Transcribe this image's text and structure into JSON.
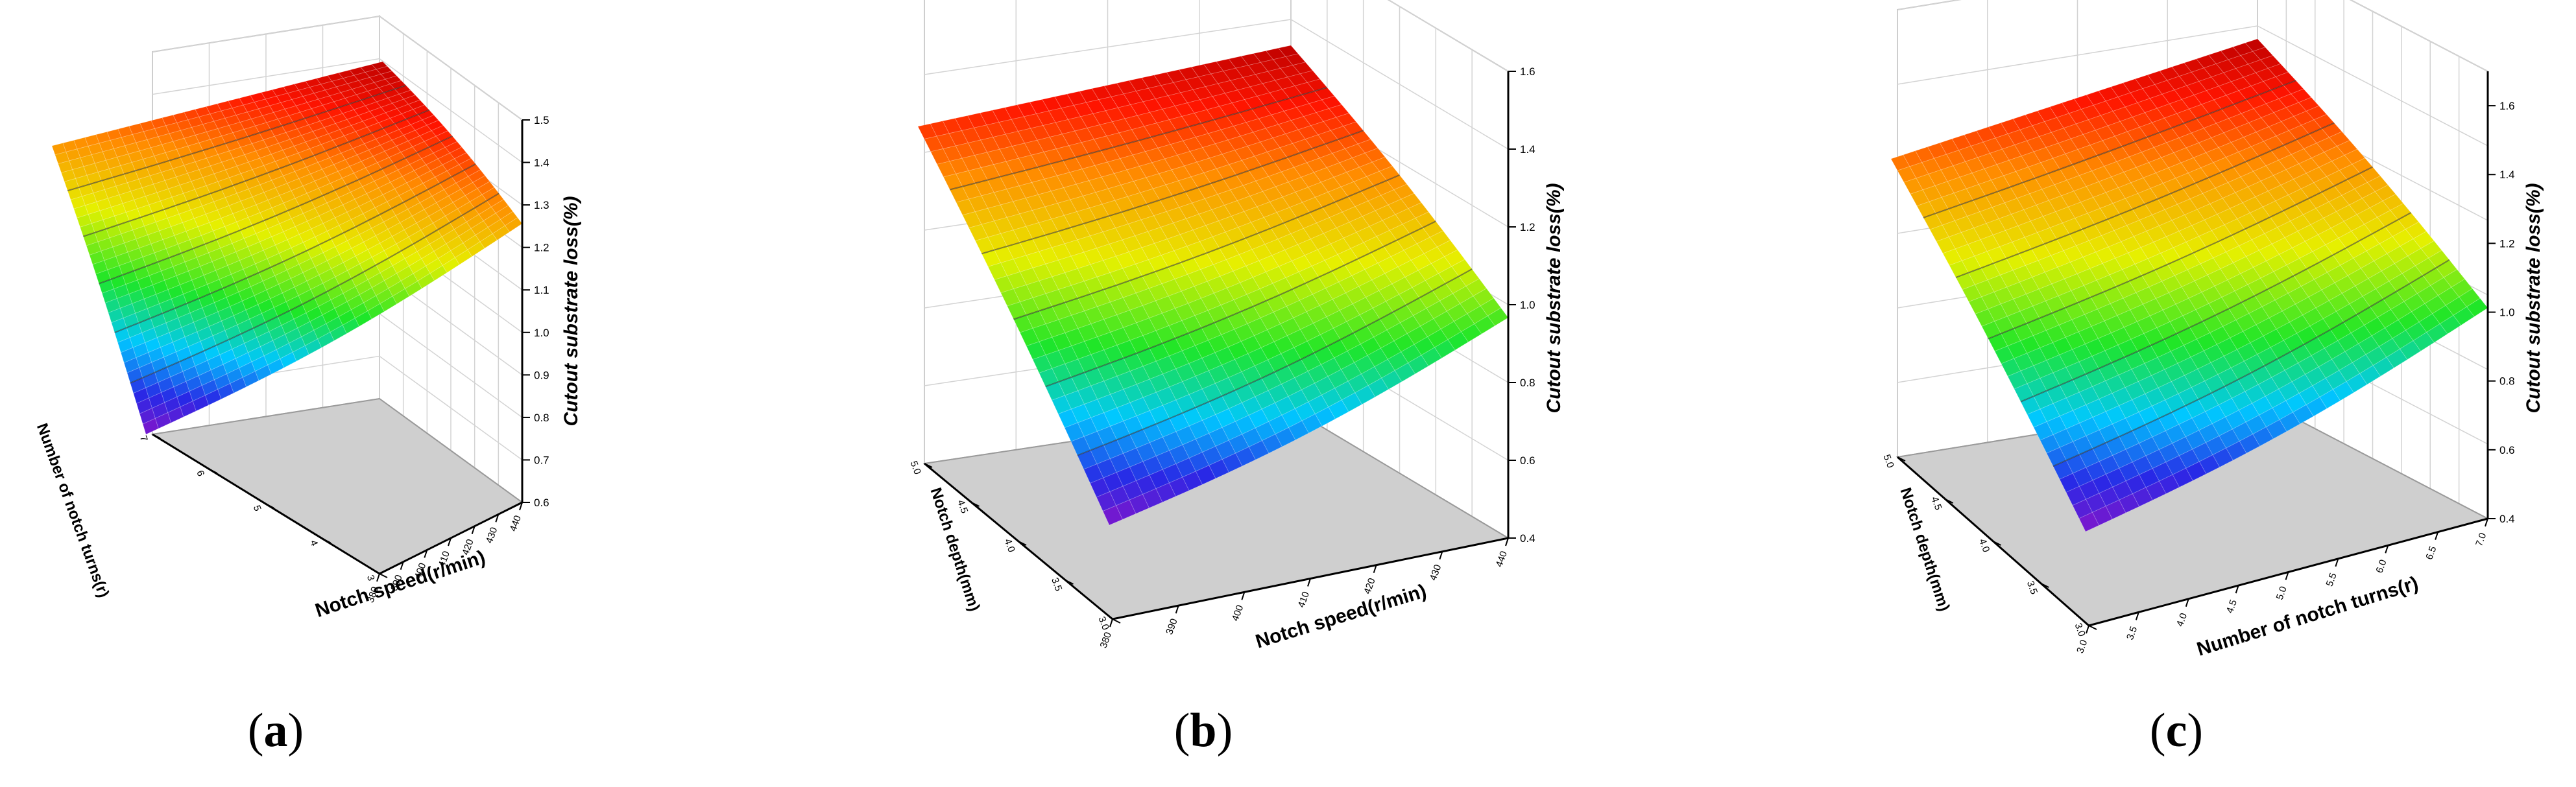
{
  "chart_data": [
    {
      "type": "surface3d",
      "panel_label": "a",
      "x_axis": {
        "label": "Notch speed(r/min)",
        "ticks": [
          "380",
          "390",
          "400",
          "410",
          "420",
          "430",
          "440"
        ],
        "range": [
          380,
          440
        ]
      },
      "y_axis": {
        "label": "Number of notch turns(r)",
        "ticks": [
          "3",
          "4",
          "5",
          "6",
          "7"
        ],
        "range": [
          3,
          7
        ]
      },
      "z_axis": {
        "label": "Cutout substrate loss(%)",
        "ticks": [
          "0.6",
          "0.7",
          "0.8",
          "0.9",
          "1.0",
          "1.1",
          "1.2",
          "1.3",
          "1.4",
          "1.5"
        ],
        "range": [
          0.6,
          1.5
        ]
      },
      "corner_values": {
        "front_left": 0.65,
        "front_right": 1.27,
        "back_left": 1.29,
        "back_right": 1.49
      },
      "floor_color": "#cfcfcf",
      "colormap": "rainbow"
    },
    {
      "type": "surface3d",
      "panel_label": "b",
      "x_axis": {
        "label": "Notch speed(r/min)",
        "ticks": [
          "380",
          "390",
          "400",
          "410",
          "420",
          "430",
          "440"
        ],
        "range": [
          380,
          440
        ]
      },
      "y_axis": {
        "label": "Notch depth(mm)",
        "ticks": [
          "3.0",
          "3.5",
          "4.0",
          "4.5",
          "5.0"
        ],
        "range": [
          3.0,
          5.0
        ]
      },
      "z_axis": {
        "label": "Cutout substrate loss(%)",
        "ticks": [
          "0.4",
          "0.6",
          "0.8",
          "1.0",
          "1.2",
          "1.4",
          "1.6"
        ],
        "range": [
          0.4,
          1.6
        ]
      },
      "corner_values": {
        "front_left": 0.45,
        "front_right": 1.0,
        "back_left": 1.45,
        "back_right": 1.6
      },
      "floor_color": "#cfcfcf",
      "colormap": "rainbow"
    },
    {
      "type": "surface3d",
      "panel_label": "c",
      "x_axis": {
        "label": "Number of notch turns(r)",
        "ticks": [
          "3.0",
          "3.5",
          "4.0",
          "4.5",
          "5.0",
          "5.5",
          "6.0",
          "6.5",
          "7.0"
        ],
        "range": [
          3.0,
          7.0
        ]
      },
      "y_axis": {
        "label": "Notch depth(mm)",
        "ticks": [
          "3.0",
          "3.5",
          "4.0",
          "4.5",
          "5.0"
        ],
        "range": [
          3.0,
          5.0
        ]
      },
      "z_axis": {
        "label": "Cutout substrate loss(%)",
        "ticks": [
          "0.4",
          "0.6",
          "0.8",
          "1.0",
          "1.2",
          "1.4",
          "1.6"
        ],
        "range": [
          0.4,
          1.7
        ]
      },
      "corner_values": {
        "front_left": 0.47,
        "front_right": 1.0,
        "back_left": 1.45,
        "back_right": 1.68
      },
      "floor_color": "#cfcfcf",
      "colormap": "rainbow"
    }
  ],
  "labels": {
    "a": "a",
    "b": "b",
    "c": "c"
  }
}
